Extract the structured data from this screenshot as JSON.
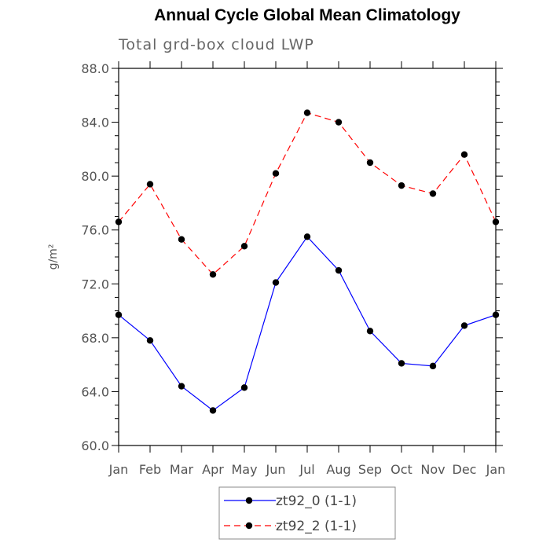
{
  "chart_data": {
    "type": "line",
    "title": "Annual Cycle Global Mean Climatology",
    "subtitle": "Total grd-box cloud LWP",
    "ylabel": "g/m²",
    "xlabel": "",
    "categories": [
      "Jan",
      "Feb",
      "Mar",
      "Apr",
      "May",
      "Jun",
      "Jul",
      "Aug",
      "Sep",
      "Oct",
      "Nov",
      "Dec",
      "Jan"
    ],
    "ylim": [
      60.0,
      88.0
    ],
    "yticks": [
      "60.0",
      "64.0",
      "68.0",
      "72.0",
      "76.0",
      "80.0",
      "84.0",
      "88.0"
    ],
    "grid": false,
    "legend_position": "bottom-center",
    "series": [
      {
        "name": "zt92_0 (1-1)",
        "color": "#0000ff",
        "dash": "solid",
        "values": [
          69.7,
          67.8,
          64.4,
          62.6,
          64.3,
          72.1,
          75.5,
          73.0,
          68.5,
          66.1,
          65.9,
          68.9,
          69.7
        ]
      },
      {
        "name": "zt92_2 (1-1)",
        "color": "#ff0000",
        "dash": "dashed",
        "values": [
          76.6,
          79.4,
          75.3,
          72.7,
          74.8,
          80.2,
          84.7,
          84.0,
          81.0,
          79.3,
          78.7,
          81.6,
          76.6
        ]
      }
    ]
  }
}
